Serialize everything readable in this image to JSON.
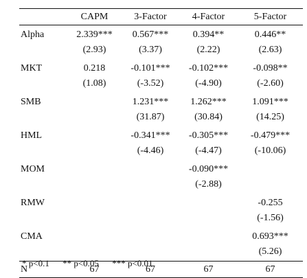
{
  "table": {
    "headers": [
      "",
      "CAPM",
      "3-Factor",
      "4-Factor",
      "5-Factor"
    ],
    "rows": [
      {
        "label": "Alpha",
        "coef": [
          "2.339***",
          "0.567***",
          "0.394**",
          "0.446**"
        ],
        "tstat": [
          "(2.93)",
          "(3.37)",
          "(2.22)",
          "(2.63)"
        ]
      },
      {
        "label": "MKT",
        "coef": [
          "0.218",
          "-0.101***",
          "-0.102***",
          "-0.098**"
        ],
        "tstat": [
          "(1.08)",
          "(-3.52)",
          "(-4.90)",
          "(-2.60)"
        ]
      },
      {
        "label": "SMB",
        "coef": [
          "",
          "1.231***",
          "1.262***",
          "1.091***"
        ],
        "tstat": [
          "",
          "(31.87)",
          "(30.84)",
          "(14.25)"
        ]
      },
      {
        "label": "HML",
        "coef": [
          "",
          "-0.341***",
          "-0.305***",
          "-0.479***"
        ],
        "tstat": [
          "",
          "(-4.46)",
          "(-4.47)",
          "(-10.06)"
        ]
      },
      {
        "label": "MOM",
        "coef": [
          "",
          "",
          "-0.090***",
          ""
        ],
        "tstat": [
          "",
          "",
          "(-2.88)",
          ""
        ]
      },
      {
        "label": "RMW",
        "coef": [
          "",
          "",
          "",
          "-0.255"
        ],
        "tstat": [
          "",
          "",
          "",
          "(-1.56)"
        ]
      },
      {
        "label": "CMA",
        "coef": [
          "",
          "",
          "",
          "0.693***"
        ],
        "tstat": [
          "",
          "",
          "",
          "(5.26)"
        ]
      }
    ],
    "n_row": {
      "label": "N",
      "values": [
        "67",
        "67",
        "67",
        "67"
      ]
    }
  },
  "notes": [
    "* p<0.1",
    "** p<0.05",
    "*** p<0.01"
  ]
}
